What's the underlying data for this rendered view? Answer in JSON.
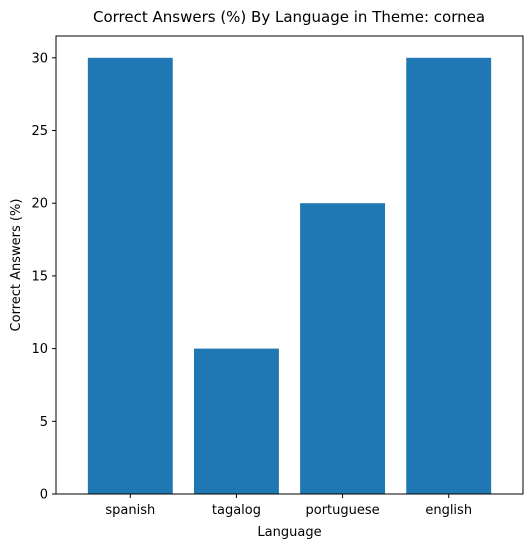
{
  "chart_data": {
    "type": "bar",
    "title": "Correct Answers (%) By Language in Theme: cornea",
    "xlabel": "Language",
    "ylabel": "Correct Answers (%)",
    "categories": [
      "spanish",
      "tagalog",
      "portuguese",
      "english"
    ],
    "values": [
      30,
      10,
      20,
      30
    ],
    "ylim": [
      0,
      31.5
    ],
    "yticks": [
      0,
      5,
      10,
      15,
      20,
      25,
      30
    ],
    "grid": false,
    "legend": "none",
    "bar_color": "#1f77b4"
  }
}
